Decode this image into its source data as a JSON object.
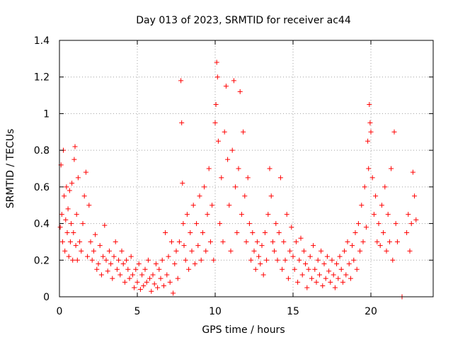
{
  "chart_data": {
    "type": "scatter",
    "title": "Day 013 of 2023, SRMTID for receiver ac44",
    "xlabel": "GPS time / hours",
    "ylabel": "SRMTID / TECUs",
    "xlim": [
      0,
      24
    ],
    "ylim": [
      0,
      1.4
    ],
    "xticks": [
      0,
      5,
      10,
      15,
      20
    ],
    "xtick_labels": [
      "0",
      "5",
      "10",
      "15",
      "20"
    ],
    "yticks": [
      0,
      0.2,
      0.4,
      0.6,
      0.8,
      1.0,
      1.2,
      1.4
    ],
    "ytick_labels": [
      "0",
      "0.2",
      "0.4",
      "0.6",
      "0.8",
      "1",
      "1.2",
      "1.4"
    ],
    "grid": true,
    "marker": "plus",
    "color": "#ff0000",
    "series": [
      {
        "name": "SRMTID",
        "points": [
          [
            0.05,
            0.38
          ],
          [
            0.1,
            0.72
          ],
          [
            0.15,
            0.45
          ],
          [
            0.2,
            0.3
          ],
          [
            0.25,
            0.8
          ],
          [
            0.3,
            0.55
          ],
          [
            0.35,
            0.25
          ],
          [
            0.4,
            0.42
          ],
          [
            0.45,
            0.6
          ],
          [
            0.5,
            0.35
          ],
          [
            0.55,
            0.48
          ],
          [
            0.6,
            0.22
          ],
          [
            0.65,
            0.58
          ],
          [
            0.7,
            0.3
          ],
          [
            0.75,
            0.4
          ],
          [
            0.8,
            0.62
          ],
          [
            0.85,
            0.2
          ],
          [
            0.9,
            0.35
          ],
          [
            0.95,
            0.75
          ],
          [
            1.0,
            0.82
          ],
          [
            1.05,
            0.28
          ],
          [
            1.1,
            0.45
          ],
          [
            1.15,
            0.2
          ],
          [
            1.2,
            0.65
          ],
          [
            1.3,
            0.3
          ],
          [
            1.4,
            0.25
          ],
          [
            1.5,
            0.4
          ],
          [
            1.6,
            0.55
          ],
          [
            1.7,
            0.68
          ],
          [
            1.8,
            0.22
          ],
          [
            1.9,
            0.5
          ],
          [
            2.0,
            0.3
          ],
          [
            2.1,
            0.2
          ],
          [
            2.2,
            0.25
          ],
          [
            2.3,
            0.34
          ],
          [
            2.4,
            0.15
          ],
          [
            2.5,
            0.18
          ],
          [
            2.6,
            0.28
          ],
          [
            2.7,
            0.12
          ],
          [
            2.8,
            0.22
          ],
          [
            2.9,
            0.39
          ],
          [
            3.0,
            0.2
          ],
          [
            3.1,
            0.14
          ],
          [
            3.2,
            0.25
          ],
          [
            3.3,
            0.18
          ],
          [
            3.4,
            0.1
          ],
          [
            3.5,
            0.22
          ],
          [
            3.6,
            0.3
          ],
          [
            3.7,
            0.15
          ],
          [
            3.8,
            0.2
          ],
          [
            3.9,
            0.12
          ],
          [
            4.0,
            0.25
          ],
          [
            4.1,
            0.18
          ],
          [
            4.2,
            0.08
          ],
          [
            4.3,
            0.2
          ],
          [
            4.4,
            0.15
          ],
          [
            4.5,
            0.1
          ],
          [
            4.6,
            0.22
          ],
          [
            4.7,
            0.12
          ],
          [
            4.8,
            0.05
          ],
          [
            4.9,
            0.15
          ],
          [
            5.0,
            0.08
          ],
          [
            5.1,
            0.18
          ],
          [
            5.2,
            0.04
          ],
          [
            5.3,
            0.12
          ],
          [
            5.4,
            0.06
          ],
          [
            5.5,
            0.15
          ],
          [
            5.6,
            0.08
          ],
          [
            5.7,
            0.2
          ],
          [
            5.8,
            0.1
          ],
          [
            5.9,
            0.03
          ],
          [
            6.0,
            0.12
          ],
          [
            6.1,
            0.07
          ],
          [
            6.2,
            0.18
          ],
          [
            6.3,
            0.05
          ],
          [
            6.4,
            0.15
          ],
          [
            6.5,
            0.1
          ],
          [
            6.6,
            0.2
          ],
          [
            6.7,
            0.06
          ],
          [
            6.8,
            0.35
          ],
          [
            6.9,
            0.12
          ],
          [
            7.0,
            0.22
          ],
          [
            7.1,
            0.08
          ],
          [
            7.2,
            0.3
          ],
          [
            7.3,
            0.02
          ],
          [
            7.4,
            0.18
          ],
          [
            7.5,
            0.25
          ],
          [
            7.6,
            0.1
          ],
          [
            7.7,
            0.3
          ],
          [
            7.8,
            1.18
          ],
          [
            7.85,
            0.95
          ],
          [
            7.9,
            0.62
          ],
          [
            7.95,
            0.4
          ],
          [
            8.0,
            0.28
          ],
          [
            8.1,
            0.2
          ],
          [
            8.2,
            0.45
          ],
          [
            8.3,
            0.15
          ],
          [
            8.4,
            0.35
          ],
          [
            8.5,
            0.25
          ],
          [
            8.6,
            0.5
          ],
          [
            8.7,
            0.18
          ],
          [
            8.8,
            0.4
          ],
          [
            8.9,
            0.28
          ],
          [
            9.0,
            0.55
          ],
          [
            9.1,
            0.2
          ],
          [
            9.2,
            0.35
          ],
          [
            9.3,
            0.6
          ],
          [
            9.4,
            0.25
          ],
          [
            9.5,
            0.45
          ],
          [
            9.6,
            0.7
          ],
          [
            9.7,
            0.3
          ],
          [
            9.8,
            0.5
          ],
          [
            9.9,
            0.2
          ],
          [
            10.0,
            0.95
          ],
          [
            10.05,
            1.05
          ],
          [
            10.1,
            1.28
          ],
          [
            10.15,
            1.2
          ],
          [
            10.2,
            0.85
          ],
          [
            10.3,
            0.4
          ],
          [
            10.4,
            0.65
          ],
          [
            10.5,
            0.3
          ],
          [
            10.6,
            0.9
          ],
          [
            10.7,
            1.15
          ],
          [
            10.8,
            0.75
          ],
          [
            10.9,
            0.5
          ],
          [
            11.0,
            0.25
          ],
          [
            11.1,
            0.8
          ],
          [
            11.2,
            1.18
          ],
          [
            11.3,
            0.6
          ],
          [
            11.4,
            0.35
          ],
          [
            11.5,
            0.7
          ],
          [
            11.6,
            1.12
          ],
          [
            11.7,
            0.45
          ],
          [
            11.8,
            0.9
          ],
          [
            11.9,
            0.55
          ],
          [
            12.0,
            0.3
          ],
          [
            12.1,
            0.65
          ],
          [
            12.2,
            0.4
          ],
          [
            12.3,
            0.2
          ],
          [
            12.4,
            0.35
          ],
          [
            12.5,
            0.25
          ],
          [
            12.6,
            0.15
          ],
          [
            12.7,
            0.3
          ],
          [
            12.8,
            0.22
          ],
          [
            12.9,
            0.18
          ],
          [
            13.0,
            0.28
          ],
          [
            13.1,
            0.12
          ],
          [
            13.2,
            0.35
          ],
          [
            13.3,
            0.2
          ],
          [
            13.4,
            0.45
          ],
          [
            13.5,
            0.7
          ],
          [
            13.6,
            0.55
          ],
          [
            13.7,
            0.3
          ],
          [
            13.8,
            0.25
          ],
          [
            13.9,
            0.4
          ],
          [
            14.0,
            0.2
          ],
          [
            14.1,
            0.35
          ],
          [
            14.2,
            0.65
          ],
          [
            14.3,
            0.15
          ],
          [
            14.4,
            0.3
          ],
          [
            14.5,
            0.2
          ],
          [
            14.6,
            0.45
          ],
          [
            14.7,
            0.1
          ],
          [
            14.8,
            0.25
          ],
          [
            14.9,
            0.38
          ],
          [
            15.0,
            0.22
          ],
          [
            15.1,
            0.15
          ],
          [
            15.2,
            0.3
          ],
          [
            15.3,
            0.08
          ],
          [
            15.4,
            0.2
          ],
          [
            15.5,
            0.32
          ],
          [
            15.6,
            0.12
          ],
          [
            15.7,
            0.25
          ],
          [
            15.8,
            0.18
          ],
          [
            15.9,
            0.05
          ],
          [
            16.0,
            0.15
          ],
          [
            16.1,
            0.22
          ],
          [
            16.2,
            0.1
          ],
          [
            16.3,
            0.28
          ],
          [
            16.4,
            0.15
          ],
          [
            16.5,
            0.08
          ],
          [
            16.6,
            0.2
          ],
          [
            16.7,
            0.12
          ],
          [
            16.8,
            0.25
          ],
          [
            16.9,
            0.06
          ],
          [
            17.0,
            0.18
          ],
          [
            17.1,
            0.1
          ],
          [
            17.2,
            0.22
          ],
          [
            17.3,
            0.14
          ],
          [
            17.4,
            0.08
          ],
          [
            17.5,
            0.2
          ],
          [
            17.6,
            0.12
          ],
          [
            17.7,
            0.05
          ],
          [
            17.8,
            0.18
          ],
          [
            17.9,
            0.1
          ],
          [
            18.0,
            0.22
          ],
          [
            18.1,
            0.15
          ],
          [
            18.2,
            0.08
          ],
          [
            18.3,
            0.25
          ],
          [
            18.4,
            0.12
          ],
          [
            18.5,
            0.3
          ],
          [
            18.6,
            0.18
          ],
          [
            18.7,
            0.1
          ],
          [
            18.8,
            0.28
          ],
          [
            18.9,
            0.2
          ],
          [
            19.0,
            0.35
          ],
          [
            19.1,
            0.15
          ],
          [
            19.2,
            0.4
          ],
          [
            19.3,
            0.25
          ],
          [
            19.4,
            0.5
          ],
          [
            19.5,
            0.3
          ],
          [
            19.6,
            0.6
          ],
          [
            19.7,
            0.38
          ],
          [
            19.8,
            0.85
          ],
          [
            19.85,
            0.7
          ],
          [
            19.9,
            1.05
          ],
          [
            19.95,
            0.95
          ],
          [
            20.0,
            0.9
          ],
          [
            20.1,
            0.65
          ],
          [
            20.2,
            0.45
          ],
          [
            20.3,
            0.55
          ],
          [
            20.4,
            0.3
          ],
          [
            20.5,
            0.4
          ],
          [
            20.6,
            0.28
          ],
          [
            20.7,
            0.5
          ],
          [
            20.8,
            0.35
          ],
          [
            20.9,
            0.6
          ],
          [
            21.0,
            0.25
          ],
          [
            21.1,
            0.45
          ],
          [
            21.2,
            0.3
          ],
          [
            21.3,
            0.7
          ],
          [
            21.4,
            0.2
          ],
          [
            21.5,
            0.9
          ],
          [
            21.6,
            0.4
          ],
          [
            21.7,
            0.3
          ],
          [
            22.0,
            0.0
          ],
          [
            22.3,
            0.35
          ],
          [
            22.4,
            0.45
          ],
          [
            22.5,
            0.25
          ],
          [
            22.6,
            0.4
          ],
          [
            22.7,
            0.68
          ],
          [
            22.8,
            0.55
          ],
          [
            22.9,
            0.42
          ]
        ]
      }
    ]
  }
}
